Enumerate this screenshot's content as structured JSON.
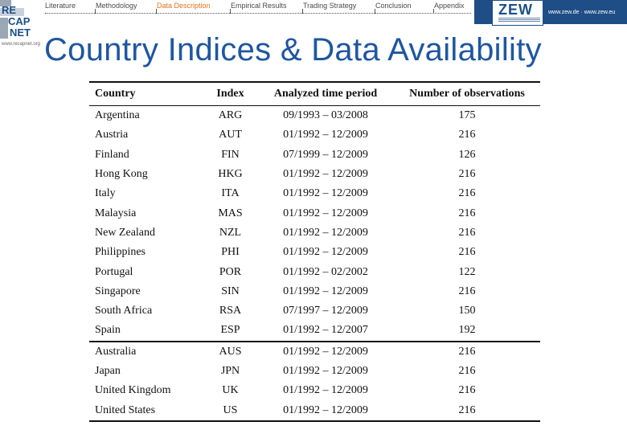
{
  "logo": {
    "line1": "RE",
    "line2": "CAP",
    "line3": "NET",
    "url": "www.recapnet.org"
  },
  "nav": {
    "items": [
      {
        "label": "Literature",
        "active": false
      },
      {
        "label": "Methodology",
        "active": false
      },
      {
        "label": "Data Description",
        "active": true
      },
      {
        "label": "Empirical Results",
        "active": false
      },
      {
        "label": "Trading Strategy",
        "active": false
      },
      {
        "label": "Conclusion",
        "active": false
      },
      {
        "label": "Appendix",
        "active": false
      }
    ],
    "active_color": "#e8701a"
  },
  "zew": {
    "word": "ZEW",
    "url": "www.zew.de · www.zew.eu"
  },
  "title": "Country Indices & Data Availability",
  "table": {
    "headers": [
      "Country",
      "Index",
      "Analyzed time period",
      "Number of observations"
    ],
    "group1": [
      [
        "Argentina",
        "ARG",
        "09/1993 – 03/2008",
        "175"
      ],
      [
        "Austria",
        "AUT",
        "01/1992 – 12/2009",
        "216"
      ],
      [
        "Finland",
        "FIN",
        "07/1999 – 12/2009",
        "126"
      ],
      [
        "Hong Kong",
        "HKG",
        "01/1992 – 12/2009",
        "216"
      ],
      [
        "Italy",
        "ITA",
        "01/1992 – 12/2009",
        "216"
      ],
      [
        "Malaysia",
        "MAS",
        "01/1992 – 12/2009",
        "216"
      ],
      [
        "New Zealand",
        "NZL",
        "01/1992 – 12/2009",
        "216"
      ],
      [
        "Philippines",
        "PHI",
        "01/1992 – 12/2009",
        "216"
      ],
      [
        "Portugal",
        "POR",
        "01/1992 – 02/2002",
        "122"
      ],
      [
        "Singapore",
        "SIN",
        "01/1992 – 12/2009",
        "216"
      ],
      [
        "South Africa",
        "RSA",
        "07/1997 – 12/2009",
        "150"
      ],
      [
        "Spain",
        "ESP",
        "01/1992 – 12/2007",
        "192"
      ]
    ],
    "group2": [
      [
        "Australia",
        "AUS",
        "01/1992 – 12/2009",
        "216"
      ],
      [
        "Japan",
        "JPN",
        "01/1992 – 12/2009",
        "216"
      ],
      [
        "United Kingdom",
        "UK",
        "01/1992 – 12/2009",
        "216"
      ],
      [
        "United States",
        "US",
        "01/1992 – 12/2009",
        "216"
      ]
    ]
  }
}
